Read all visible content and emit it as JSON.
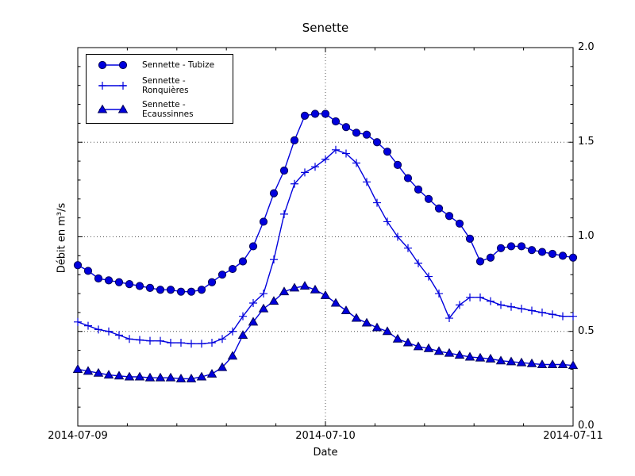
{
  "chart_data": {
    "type": "line",
    "title": "Senette",
    "xlabel": "Date",
    "ylabel": "Débit en m³/s",
    "x_tick_labels": [
      "2014-07-09",
      "2014-07-10",
      "2014-07-11"
    ],
    "y_tick_labels": [
      "0.0",
      "0.5",
      "1.0",
      "1.5",
      "2.0"
    ],
    "ylim": [
      0.0,
      2.0
    ],
    "x_hours_range": [
      0,
      48
    ],
    "x_minor_step_hours": 4.8,
    "y_minor_step": 0.1,
    "grid": {
      "h_values": [
        0.5,
        1.0,
        1.5
      ],
      "v_hours": [
        24
      ],
      "style": "dotted"
    },
    "legend_position": "upper-left",
    "colors": {
      "line": "#0000dd",
      "marker_fill": "#0000dd",
      "marker_edge": "#000055",
      "grid": "#555555",
      "axis": "#000000"
    },
    "series": [
      {
        "name": "Sennette - Tubize",
        "marker": "circle",
        "values": [
          0.85,
          0.82,
          0.78,
          0.77,
          0.76,
          0.75,
          0.74,
          0.73,
          0.72,
          0.72,
          0.71,
          0.71,
          0.72,
          0.76,
          0.8,
          0.83,
          0.87,
          0.95,
          1.08,
          1.23,
          1.35,
          1.51,
          1.64,
          1.65,
          1.65,
          1.61,
          1.58,
          1.55,
          1.54,
          1.5,
          1.45,
          1.38,
          1.31,
          1.25,
          1.2,
          1.15,
          1.11,
          1.07,
          0.99,
          0.87,
          0.89,
          0.94,
          0.95,
          0.95,
          0.93,
          0.92,
          0.91,
          0.9,
          0.89
        ]
      },
      {
        "name": "Sennette - Ronquières",
        "marker": "plus",
        "values": [
          0.55,
          0.53,
          0.51,
          0.5,
          0.48,
          0.46,
          0.455,
          0.45,
          0.45,
          0.44,
          0.44,
          0.435,
          0.435,
          0.44,
          0.46,
          0.5,
          0.58,
          0.65,
          0.7,
          0.88,
          1.12,
          1.28,
          1.34,
          1.37,
          1.41,
          1.46,
          1.44,
          1.39,
          1.29,
          1.18,
          1.08,
          1.0,
          0.94,
          0.86,
          0.79,
          0.7,
          0.57,
          0.64,
          0.68,
          0.68,
          0.66,
          0.64,
          0.63,
          0.62,
          0.61,
          0.6,
          0.59,
          0.58,
          0.58
        ]
      },
      {
        "name": "Sennette - Ecaussinnes",
        "marker": "triangle",
        "values": [
          0.3,
          0.29,
          0.28,
          0.27,
          0.265,
          0.26,
          0.26,
          0.255,
          0.255,
          0.255,
          0.25,
          0.25,
          0.26,
          0.275,
          0.31,
          0.37,
          0.48,
          0.55,
          0.62,
          0.66,
          0.71,
          0.73,
          0.74,
          0.72,
          0.69,
          0.65,
          0.61,
          0.57,
          0.545,
          0.52,
          0.5,
          0.46,
          0.44,
          0.42,
          0.41,
          0.395,
          0.385,
          0.375,
          0.365,
          0.36,
          0.355,
          0.345,
          0.34,
          0.335,
          0.33,
          0.325,
          0.325,
          0.325,
          0.32
        ]
      }
    ]
  }
}
